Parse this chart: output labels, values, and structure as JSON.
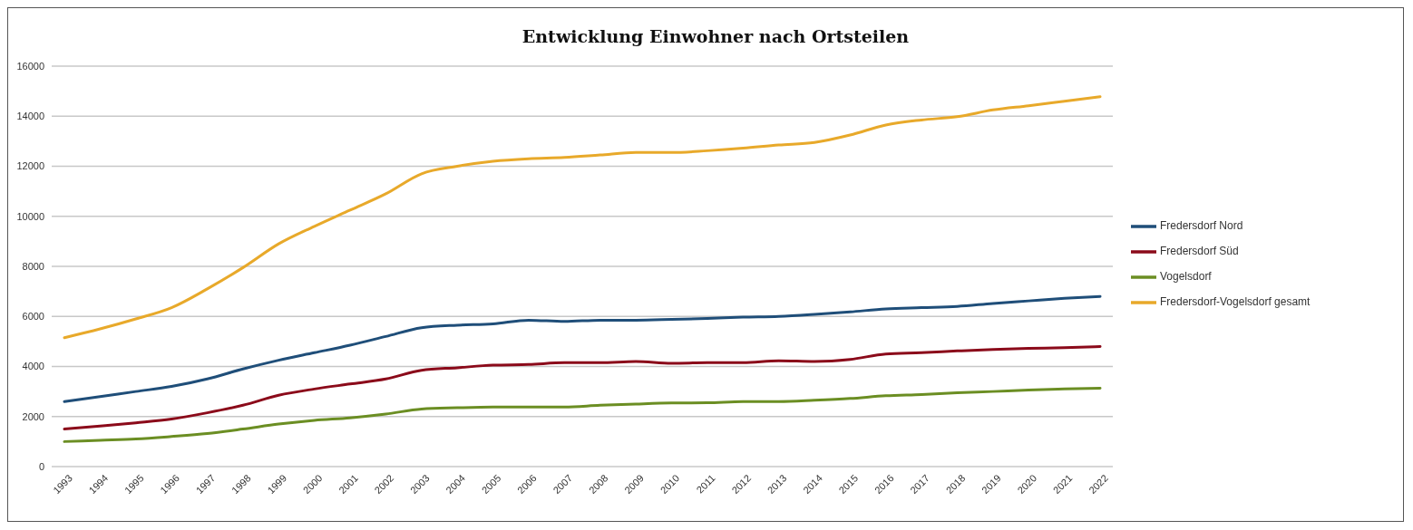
{
  "chart_data": {
    "type": "line",
    "title": "Entwicklung Einwohner nach Ortsteilen",
    "categories": [
      "1993",
      "1994",
      "1995",
      "1996",
      "1997",
      "1998",
      "1999",
      "2000",
      "2001",
      "2002",
      "2003",
      "2004",
      "2005",
      "2006",
      "2007",
      "2008",
      "2009",
      "2010",
      "2011",
      "2012",
      "2013",
      "2014",
      "2015",
      "2016",
      "2017",
      "2018",
      "2019",
      "2020",
      "2021",
      "2022"
    ],
    "series": [
      {
        "name": "Fredersdorf Nord",
        "color": "#1f4e79",
        "values": [
          2600,
          2800,
          3000,
          3200,
          3500,
          3900,
          4250,
          4550,
          4850,
          5200,
          5550,
          5650,
          5700,
          5850,
          5800,
          5850,
          5850,
          5880,
          5920,
          5970,
          6000,
          6080,
          6180,
          6300,
          6350,
          6400,
          6520,
          6620,
          6720,
          6800
        ]
      },
      {
        "name": "Fredersdorf Süd",
        "color": "#8b0a1a",
        "values": [
          1500,
          1620,
          1750,
          1900,
          2150,
          2450,
          2850,
          3100,
          3300,
          3500,
          3850,
          3950,
          4050,
          4080,
          4150,
          4150,
          4200,
          4130,
          4150,
          4150,
          4230,
          4200,
          4280,
          4500,
          4550,
          4620,
          4680,
          4720,
          4750,
          4800
        ]
      },
      {
        "name": "Vogelsdorf",
        "color": "#6b8e23",
        "values": [
          1000,
          1050,
          1100,
          1200,
          1320,
          1500,
          1700,
          1850,
          1950,
          2100,
          2300,
          2350,
          2380,
          2380,
          2380,
          2450,
          2500,
          2540,
          2550,
          2600,
          2600,
          2650,
          2720,
          2830,
          2880,
          2950,
          3000,
          3060,
          3100,
          3130
        ]
      },
      {
        "name": "Fredersdorf-Vogelsdorf gesamt",
        "color": "#e8a92a",
        "values": [
          5150,
          5500,
          5900,
          6350,
          7100,
          7950,
          8900,
          9600,
          10250,
          10900,
          11700,
          12000,
          12200,
          12300,
          12350,
          12450,
          12550,
          12550,
          12620,
          12720,
          12850,
          12950,
          13250,
          13650,
          13850,
          13980,
          14250,
          14420,
          14600,
          14780
        ]
      }
    ],
    "ylim": [
      0,
      16000
    ],
    "yticks": [
      0,
      2000,
      4000,
      6000,
      8000,
      10000,
      12000,
      14000,
      16000
    ],
    "grid": "y",
    "legend": "right",
    "marker": "none",
    "line_style": "solid"
  }
}
